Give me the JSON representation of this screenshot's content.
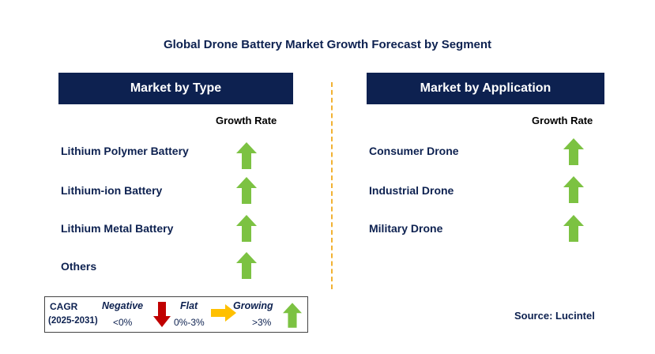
{
  "title": "Global Drone Battery Market Growth Forecast by Segment",
  "left_panel": {
    "header": "Market by Type",
    "growth_rate_label": "Growth Rate",
    "items": [
      {
        "label": "Lithium Polymer Battery",
        "trend": "growing"
      },
      {
        "label": "Lithium-ion Battery",
        "trend": "growing"
      },
      {
        "label": "Lithium Metal Battery",
        "trend": "growing"
      },
      {
        "label": "Others",
        "trend": "growing"
      }
    ]
  },
  "right_panel": {
    "header": "Market by Application",
    "growth_rate_label": "Growth Rate",
    "items": [
      {
        "label": "Consumer Drone",
        "trend": "growing"
      },
      {
        "label": "Industrial Drone",
        "trend": "growing"
      },
      {
        "label": "Military Drone",
        "trend": "growing"
      }
    ]
  },
  "legend": {
    "cagr_label": "CAGR",
    "period": "(2025-2031)",
    "negative": {
      "label": "Negative",
      "range": "<0%"
    },
    "flat": {
      "label": "Flat",
      "range": "0%-3%"
    },
    "growing": {
      "label": "Growing",
      "range": ">3%"
    }
  },
  "source": "Source: Lucintel",
  "colors": {
    "navy": "#0d2150",
    "growing": "#7cc242",
    "negative": "#c00000",
    "flat": "#ffc000",
    "divider": "#f2b233"
  }
}
